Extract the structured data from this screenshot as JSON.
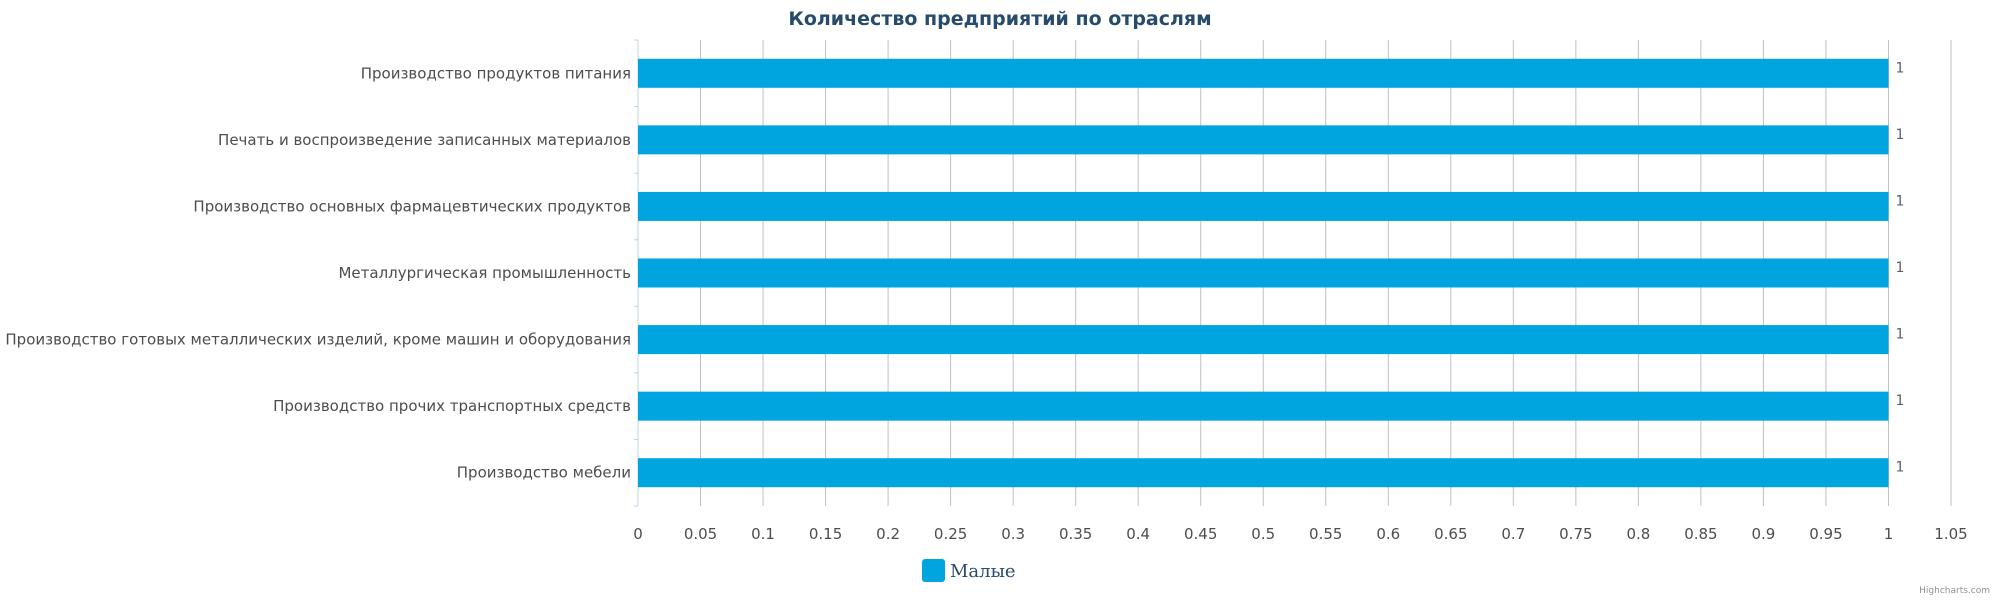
{
  "chart_data": {
    "type": "bar",
    "orientation": "horizontal",
    "title": "Количество предприятий по отраслям",
    "categories": [
      "Производство продуктов питания",
      "Печать и воспроизведение записанных материалов",
      "Производство основных фармацевтических продуктов",
      "Металлургическая промышленность",
      "Производство готовых металлических изделий, кроме машин и оборудования",
      "Производство прочих транспортных средств",
      "Производство мебели"
    ],
    "series": [
      {
        "name": "Малые",
        "values": [
          1,
          1,
          1,
          1,
          1,
          1,
          1
        ],
        "color": "#00a5e0"
      }
    ],
    "xlim": [
      0,
      1.05
    ],
    "x_ticks": [
      "0",
      "0.05",
      "0.1",
      "0.15",
      "0.2",
      "0.25",
      "0.3",
      "0.35",
      "0.4",
      "0.45",
      "0.5",
      "0.55",
      "0.6",
      "0.65",
      "0.7",
      "0.75",
      "0.8",
      "0.85",
      "0.9",
      "0.95",
      "1",
      "1.05"
    ],
    "grid": true,
    "legend_placement": "bottom",
    "data_labels": true
  },
  "credits": "Highcharts.com"
}
